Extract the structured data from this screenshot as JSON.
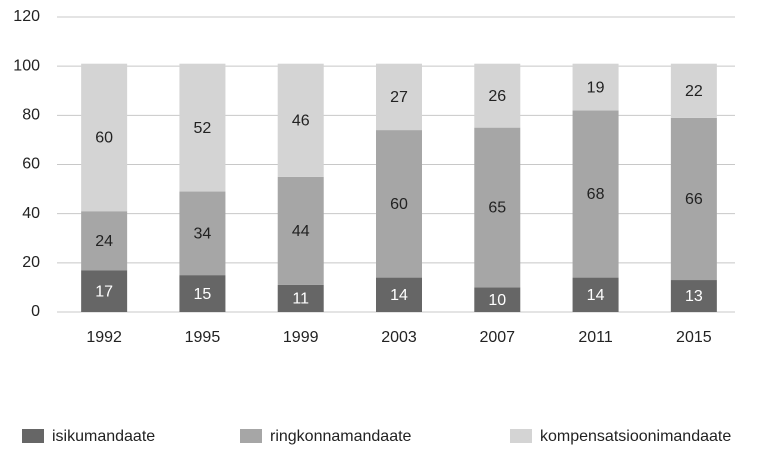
{
  "chart_data": {
    "type": "stacked_bar",
    "categories": [
      "1992",
      "1995",
      "1999",
      "2003",
      "2007",
      "2011",
      "2015"
    ],
    "series": [
      {
        "name": "isikumandaate",
        "color": "#666666",
        "values": [
          17,
          15,
          11,
          14,
          10,
          14,
          13
        ]
      },
      {
        "name": "ringkonnamandaate",
        "color": "#a6a6a6",
        "values": [
          24,
          34,
          44,
          60,
          65,
          68,
          66
        ]
      },
      {
        "name": "kompensatsioonimandaate",
        "color": "#d4d4d4",
        "values": [
          60,
          52,
          46,
          27,
          26,
          19,
          22
        ]
      }
    ],
    "ylim": [
      0,
      120
    ],
    "yticks": [
      0,
      20,
      40,
      60,
      80,
      100,
      120
    ],
    "grid": true,
    "legend": "bottom"
  }
}
